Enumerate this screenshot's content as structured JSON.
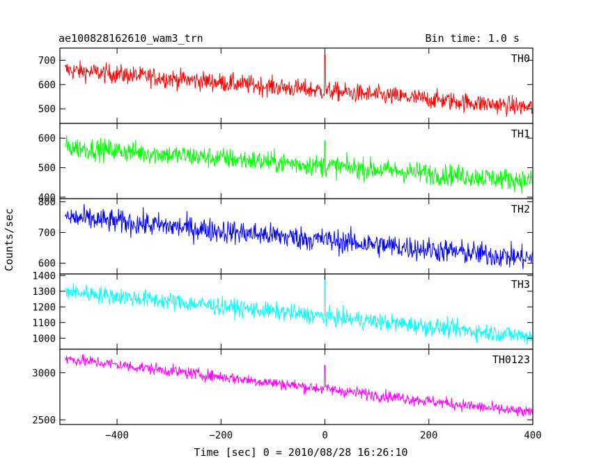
{
  "header": {
    "title": "ae100828162610_wam3_trn",
    "bin_time": "Bin time: 1.0 s"
  },
  "axes": {
    "xlabel": "Time [sec] 0 = 2010/08/28 16:26:10",
    "ylabel": "Counts/sec"
  },
  "chart_data": {
    "type": "line",
    "title": "ae100828162610_wam3_trn",
    "xlabel": "Time [sec] 0 = 2010/08/28 16:26:10",
    "ylabel": "Counts/sec",
    "xlim": [
      -510,
      400
    ],
    "x_ticks": [
      -400,
      -200,
      0,
      200,
      400
    ],
    "x_tick_labels": [
      "−400",
      "−200",
      "0",
      "200",
      "400"
    ],
    "bin_time_s": 1.0,
    "panels": [
      {
        "name": "TH0",
        "color": "#ff0000",
        "ylim": [
          440,
          750
        ],
        "yticks": [
          500,
          600,
          700
        ],
        "trend_start": 660,
        "trend_end": 505,
        "noise": 28,
        "spike_at": 0,
        "spike_value": 725
      },
      {
        "name": "TH1",
        "color": "#00ff00",
        "ylim": [
          395,
          650
        ],
        "yticks": [
          400,
          500,
          600
        ],
        "trend_start": 570,
        "trend_end": 455,
        "noise": 26,
        "spike_at": 0,
        "spike_value": 590
      },
      {
        "name": "TH2",
        "color": "#0000ff",
        "ylim": [
          565,
          810
        ],
        "yticks": [
          600,
          700,
          800
        ],
        "trend_start": 750,
        "trend_end": 615,
        "noise": 28,
        "spike_at": 0,
        "spike_value": 690
      },
      {
        "name": "TH3",
        "color": "#00ffff",
        "ylim": [
          930,
          1410
        ],
        "yticks": [
          1000,
          1100,
          1200,
          1300,
          1400
        ],
        "trend_start": 1300,
        "trend_end": 1010,
        "noise": 40,
        "spike_at": 0,
        "spike_value": 1400
      },
      {
        "name": "TH0123",
        "color": "#ff00ff",
        "ylim": [
          2450,
          3250
        ],
        "yticks": [
          2500,
          3000
        ],
        "trend_start": 3150,
        "trend_end": 2570,
        "noise": 45,
        "spike_at": 0,
        "spike_value": 3080
      }
    ]
  }
}
